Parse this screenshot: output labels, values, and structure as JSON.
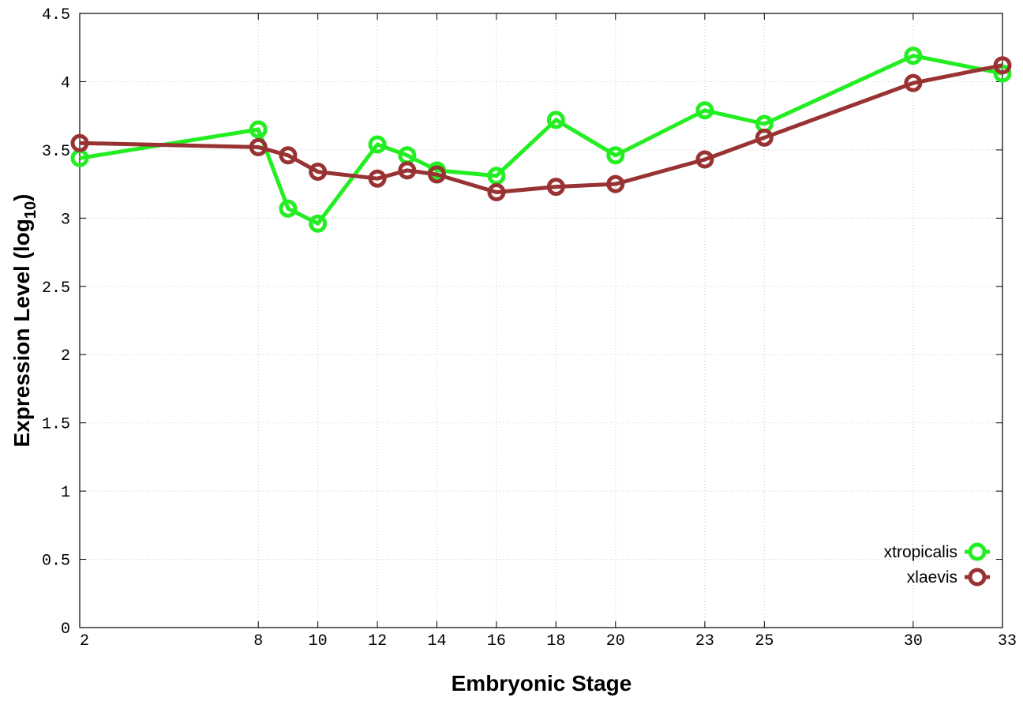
{
  "chart_data": {
    "type": "line",
    "title": "",
    "xlabel": "Embryonic Stage",
    "ylabel_main": "Expression Level (log",
    "ylabel_sub": "10",
    "ylabel_close": ")",
    "x_ticks": [
      "2",
      "8",
      "10",
      "12",
      "14",
      "16",
      "18",
      "20",
      "23",
      "25",
      "30",
      "33"
    ],
    "x_positions": [
      2,
      8,
      10,
      12,
      14,
      16,
      18,
      20,
      23,
      25,
      30,
      33
    ],
    "xlim": [
      2,
      33
    ],
    "ylim": [
      0,
      4.5
    ],
    "y_ticks": [
      "0",
      "0.5",
      "1",
      "1.5",
      "2",
      "2.5",
      "3",
      "3.5",
      "4",
      "4.5"
    ],
    "grid": true,
    "legend_position": "bottom-right",
    "series": [
      {
        "name": "xtropicalis",
        "color": "#22ee22",
        "x": [
          2,
          8,
          9,
          10,
          12,
          13,
          14,
          16,
          18,
          20,
          23,
          25,
          30,
          33
        ],
        "y": [
          3.44,
          3.65,
          3.07,
          2.96,
          3.54,
          3.46,
          3.35,
          3.31,
          3.72,
          3.46,
          3.79,
          3.69,
          4.19,
          4.06
        ]
      },
      {
        "name": "xlaevis",
        "color": "#993333",
        "x": [
          2,
          8,
          9,
          10,
          12,
          13,
          14,
          16,
          18,
          20,
          23,
          25,
          30,
          33
        ],
        "y": [
          3.55,
          3.52,
          3.46,
          3.34,
          3.29,
          3.35,
          3.32,
          3.19,
          3.23,
          3.25,
          3.43,
          3.59,
          3.99,
          4.12
        ]
      }
    ]
  }
}
